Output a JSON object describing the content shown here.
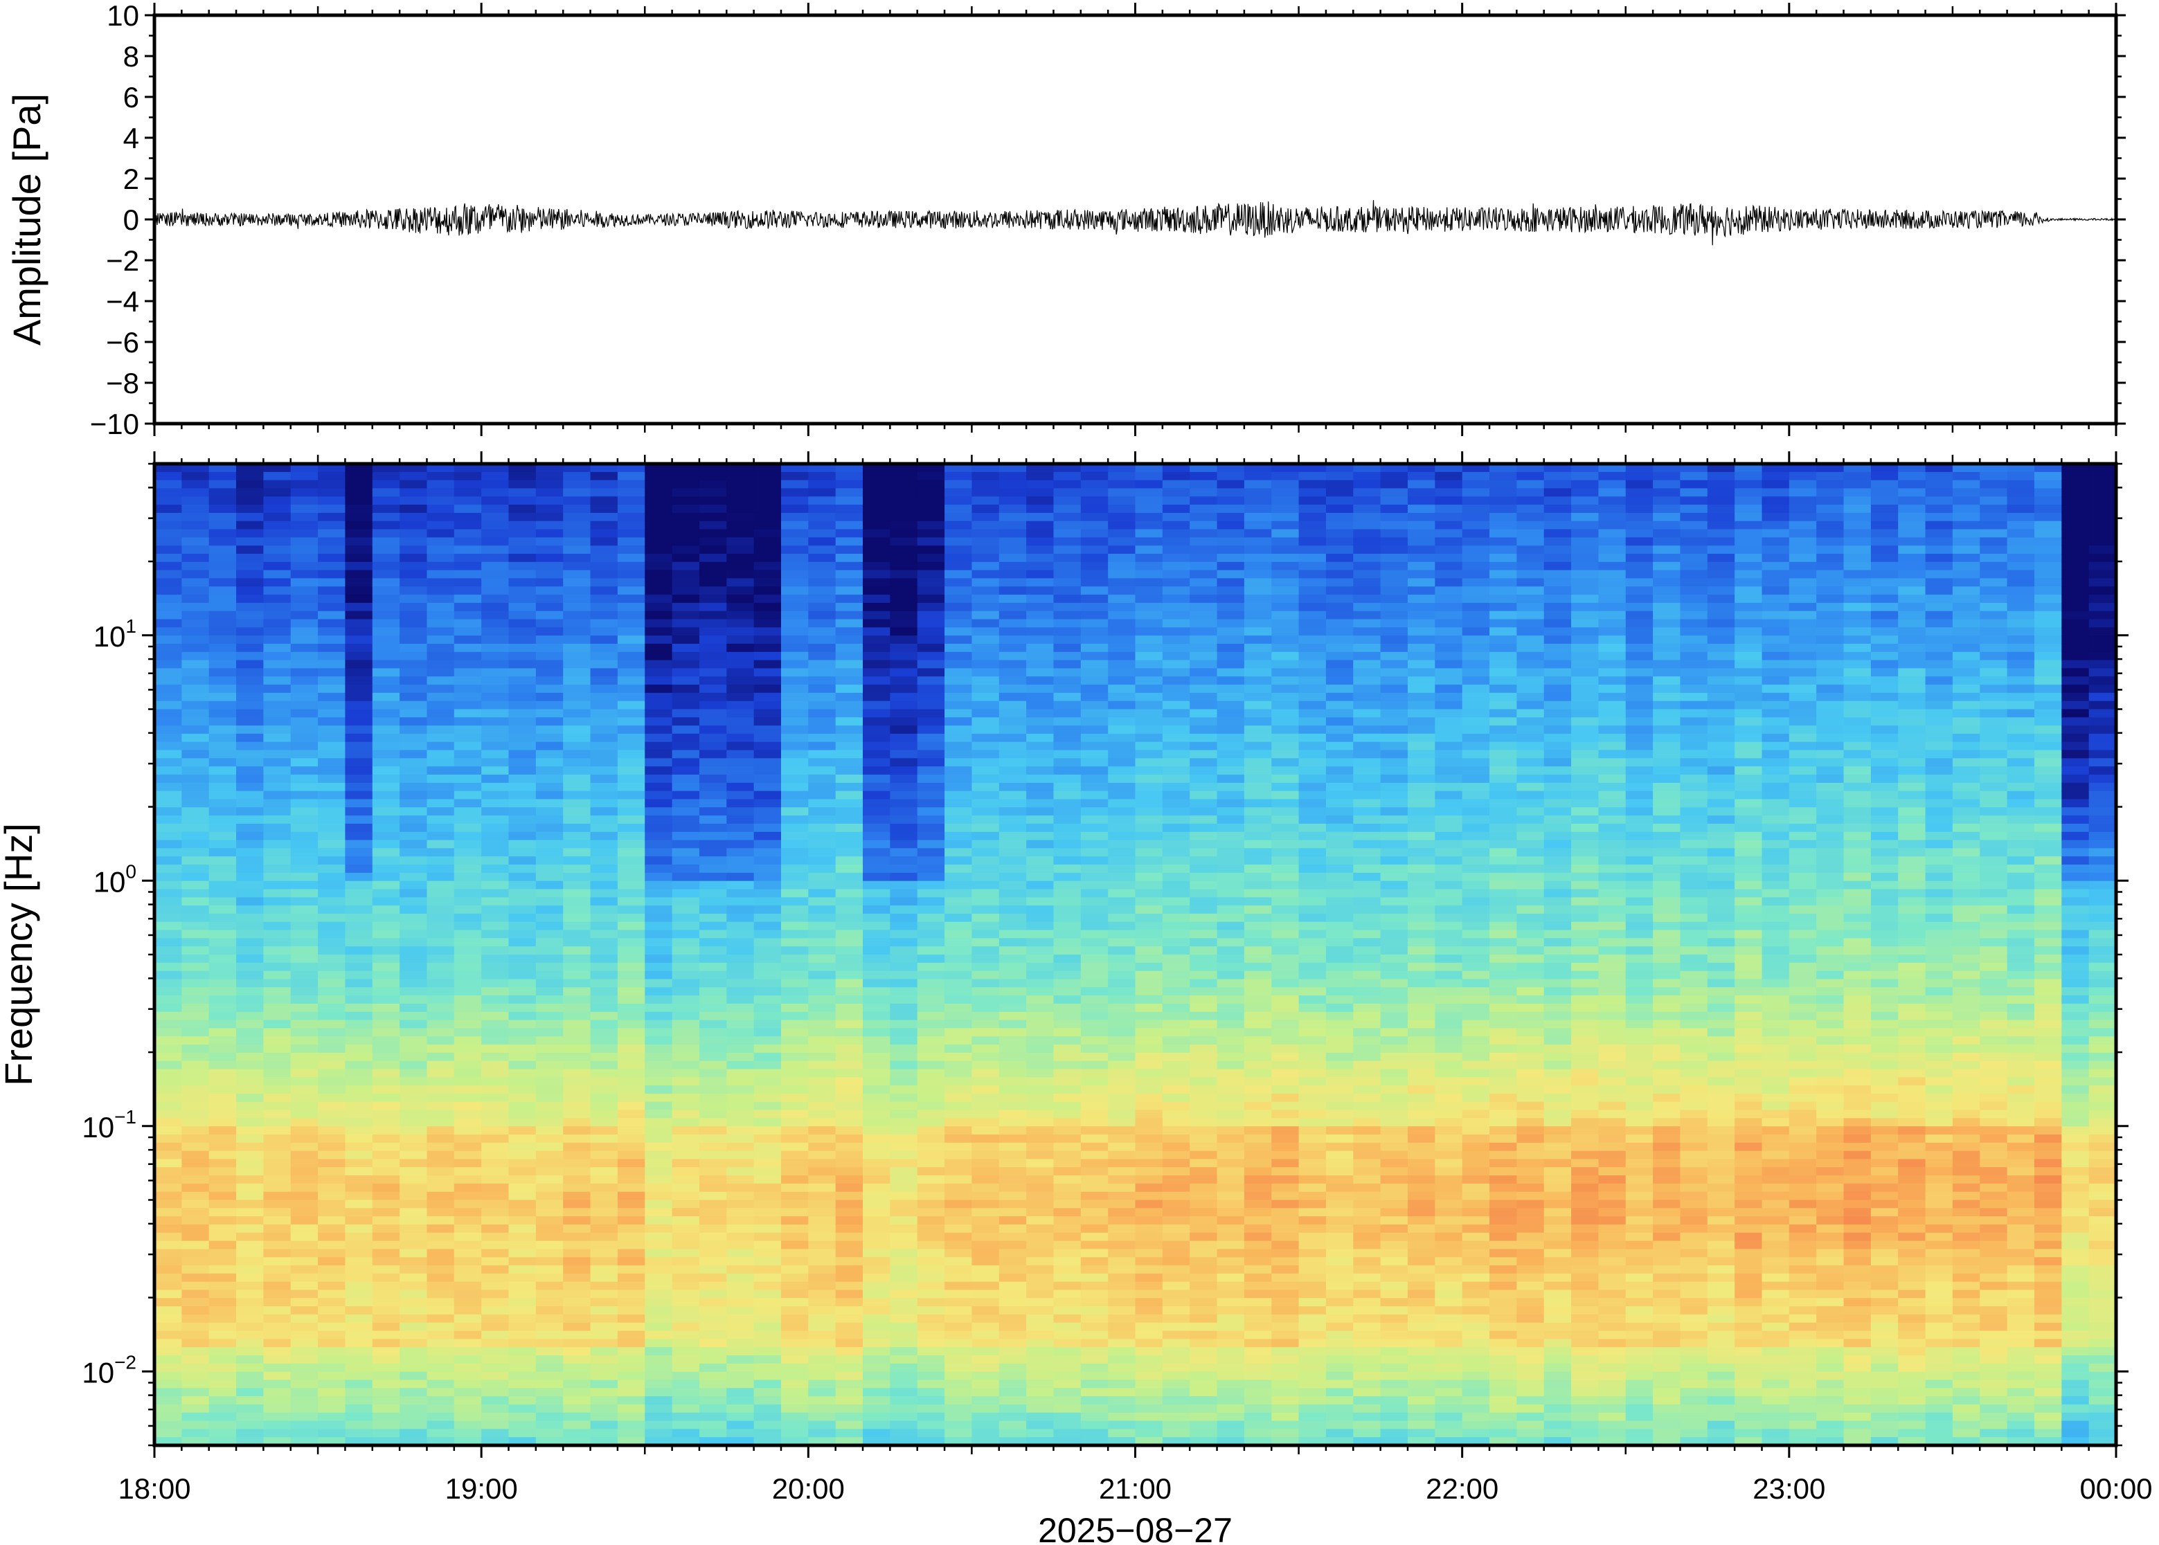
{
  "chart_data": [
    {
      "type": "line",
      "panel": "waveform",
      "ylabel": "Amplitude [Pa]",
      "ylim": [
        -10,
        10
      ],
      "yticks": [
        10,
        8,
        6,
        4,
        2,
        0,
        -2,
        -4,
        -6,
        -8,
        -10
      ],
      "ytick_labels": [
        "10",
        "8",
        "6",
        "4",
        "2",
        "0",
        "−2",
        "−4",
        "−6",
        "−8",
        "−10"
      ],
      "xlim_hours": [
        18,
        24
      ],
      "envelope": {
        "x_hours": [
          18.0,
          18.5,
          18.9,
          19.0,
          19.2,
          19.5,
          19.9,
          20.0,
          20.5,
          21.0,
          21.4,
          21.5,
          22.0,
          22.5,
          22.8,
          23.0,
          23.5,
          23.75,
          23.8,
          24.0
        ],
        "amplitude_pa": [
          0.35,
          0.3,
          0.8,
          0.9,
          0.6,
          0.25,
          0.5,
          0.4,
          0.45,
          0.55,
          0.9,
          0.65,
          0.6,
          0.65,
          0.85,
          0.55,
          0.45,
          0.4,
          0.05,
          0.05
        ]
      },
      "color": "#000000"
    },
    {
      "type": "heatmap",
      "panel": "spectrogram",
      "ylabel": "Frequency [Hz]",
      "yscale": "log",
      "ylim_hz": [
        0.005,
        50
      ],
      "yticks_hz": [
        10,
        1,
        0.1,
        0.01
      ],
      "ytick_labels": [
        {
          "base": "10",
          "exp": "1"
        },
        {
          "base": "10",
          "exp": "0"
        },
        {
          "base": "10",
          "exp": "−1"
        },
        {
          "base": "10",
          "exp": "−2"
        }
      ],
      "xlim_hours": [
        18,
        24
      ],
      "xtick_labels": [
        "18:00",
        "19:00",
        "20:00",
        "21:00",
        "22:00",
        "23:00",
        "00:00"
      ],
      "xlabel": "2025−08−27",
      "colormap": [
        "#0b0a6e",
        "#1a3fd4",
        "#2f86f0",
        "#48c8f2",
        "#7de8c8",
        "#c8f08a",
        "#f4e87a",
        "#f9b45a",
        "#f47a48",
        "#e84a40"
      ],
      "intensity_profile_note": "",
      "quiet_intervals_hours": [
        [
          18.6,
          18.68
        ],
        [
          19.5,
          19.95
        ],
        [
          20.2,
          20.45
        ],
        [
          23.8,
          24.0
        ]
      ]
    }
  ]
}
